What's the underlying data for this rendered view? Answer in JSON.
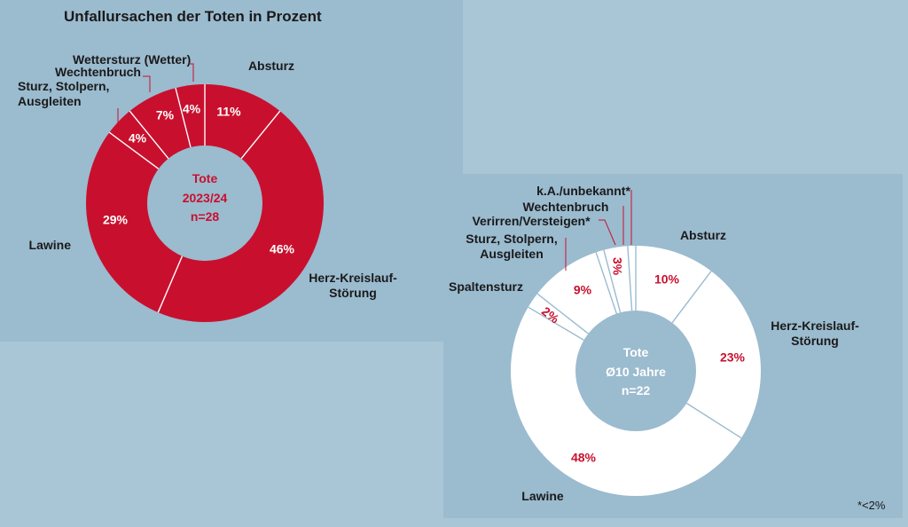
{
  "title": "Unfallursachen der Toten in Prozent",
  "footnote": "*<2%",
  "colors": {
    "red": "#c8102e",
    "white": "#ffffff",
    "panel": "#9bbbcf",
    "text_dark": "#1a1a1a"
  },
  "chart_data": [
    {
      "type": "pie",
      "name": "left",
      "center_label": [
        "Tote",
        "2023/24",
        "n=28"
      ],
      "slices": [
        {
          "label": "Absturz",
          "value": 11,
          "pct_label": "11%"
        },
        {
          "label": "Herz-Kreislauf-Störung",
          "value": 46,
          "pct_label": "46%"
        },
        {
          "label": "Lawine",
          "value": 29,
          "pct_label": "29%"
        },
        {
          "label": "Sturz, Stolpern, Ausgleiten",
          "value": 4,
          "pct_label": "4%"
        },
        {
          "label": "Wechtenbruch",
          "value": 7,
          "pct_label": "7%"
        },
        {
          "label": "Wettersturz (Wetter)",
          "value": 4,
          "pct_label": "4%"
        }
      ]
    },
    {
      "type": "pie",
      "name": "right",
      "center_label": [
        "Tote",
        "Ø10 Jahre",
        "n=22"
      ],
      "slices": [
        {
          "label": "Absturz",
          "value": 10,
          "pct_label": "10%"
        },
        {
          "label": "Herz-Kreislauf-Störung",
          "value": 23,
          "pct_label": "23%"
        },
        {
          "label": "Lawine",
          "value": 48,
          "pct_label": "48%"
        },
        {
          "label": "Spaltensturz",
          "value": 2,
          "pct_label": "2%"
        },
        {
          "label": "Sturz, Stolpern, Ausgleiten",
          "value": 9,
          "pct_label": "9%"
        },
        {
          "label": "Verirren/Versteigen*",
          "value": 1,
          "pct_label": ""
        },
        {
          "label": "Wechtenbruch",
          "value": 3,
          "pct_label": "3%"
        },
        {
          "label": "k.A./unbekannt*",
          "value": 1,
          "pct_label": ""
        }
      ]
    }
  ]
}
